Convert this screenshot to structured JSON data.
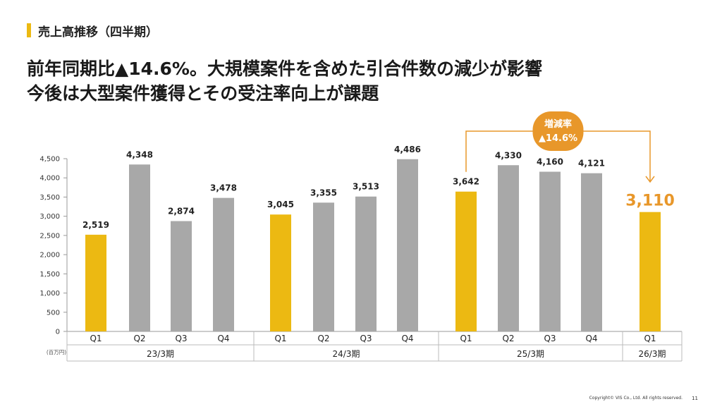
{
  "header": {
    "section_title": "売上高推移（四半期）",
    "headline_line1": "前年同期比▲14.6%。大規模案件を含めた引合件数の減少が影響",
    "headline_line2": "今後は大型案件獲得とその受注率向上が課題"
  },
  "chart_data": {
    "type": "bar",
    "unit_label": "(百万円)",
    "ylim": [
      0,
      4500
    ],
    "yticks": [
      "0",
      "500",
      "1,000",
      "1,500",
      "2,000",
      "2,500",
      "3,000",
      "3,500",
      "4,000",
      "4,500"
    ],
    "groups": [
      {
        "label": "23/3期",
        "bars": [
          {
            "category": "Q1",
            "value": 2519,
            "label": "2,519",
            "highlight": true
          },
          {
            "category": "Q2",
            "value": 4348,
            "label": "4,348",
            "highlight": false
          },
          {
            "category": "Q3",
            "value": 2874,
            "label": "2,874",
            "highlight": false
          },
          {
            "category": "Q4",
            "value": 3478,
            "label": "3,478",
            "highlight": false
          }
        ]
      },
      {
        "label": "24/3期",
        "bars": [
          {
            "category": "Q1",
            "value": 3045,
            "label": "3,045",
            "highlight": true
          },
          {
            "category": "Q2",
            "value": 3355,
            "label": "3,355",
            "highlight": false
          },
          {
            "category": "Q3",
            "value": 3513,
            "label": "3,513",
            "highlight": false
          },
          {
            "category": "Q4",
            "value": 4486,
            "label": "4,486",
            "highlight": false
          }
        ]
      },
      {
        "label": "25/3期",
        "bars": [
          {
            "category": "Q1",
            "value": 3642,
            "label": "3,642",
            "highlight": true
          },
          {
            "category": "Q2",
            "value": 4330,
            "label": "4,330",
            "highlight": false
          },
          {
            "category": "Q3",
            "value": 4160,
            "label": "4,160",
            "highlight": false
          },
          {
            "category": "Q4",
            "value": 4121,
            "label": "4,121",
            "highlight": false
          }
        ]
      },
      {
        "label": "26/3期",
        "bars": [
          {
            "category": "Q1",
            "value": 3110,
            "label": "3,110",
            "highlight": true,
            "emphasized": true
          }
        ]
      }
    ],
    "annotation": {
      "line1": "増減率",
      "line2": "▲14.6%",
      "from": "25/3期 Q1",
      "to": "26/3期 Q1"
    },
    "grid": false
  },
  "colors": {
    "highlight_bar": "#ecb912",
    "normal_bar": "#a8a8a8",
    "annotation": "#e8972a",
    "emphasis_label": "#e8972a",
    "accent": "#ecb912"
  },
  "footer": {
    "copyright": "Copyright© VIS Co., Ltd. All rights reserved.",
    "page_number": "11"
  }
}
